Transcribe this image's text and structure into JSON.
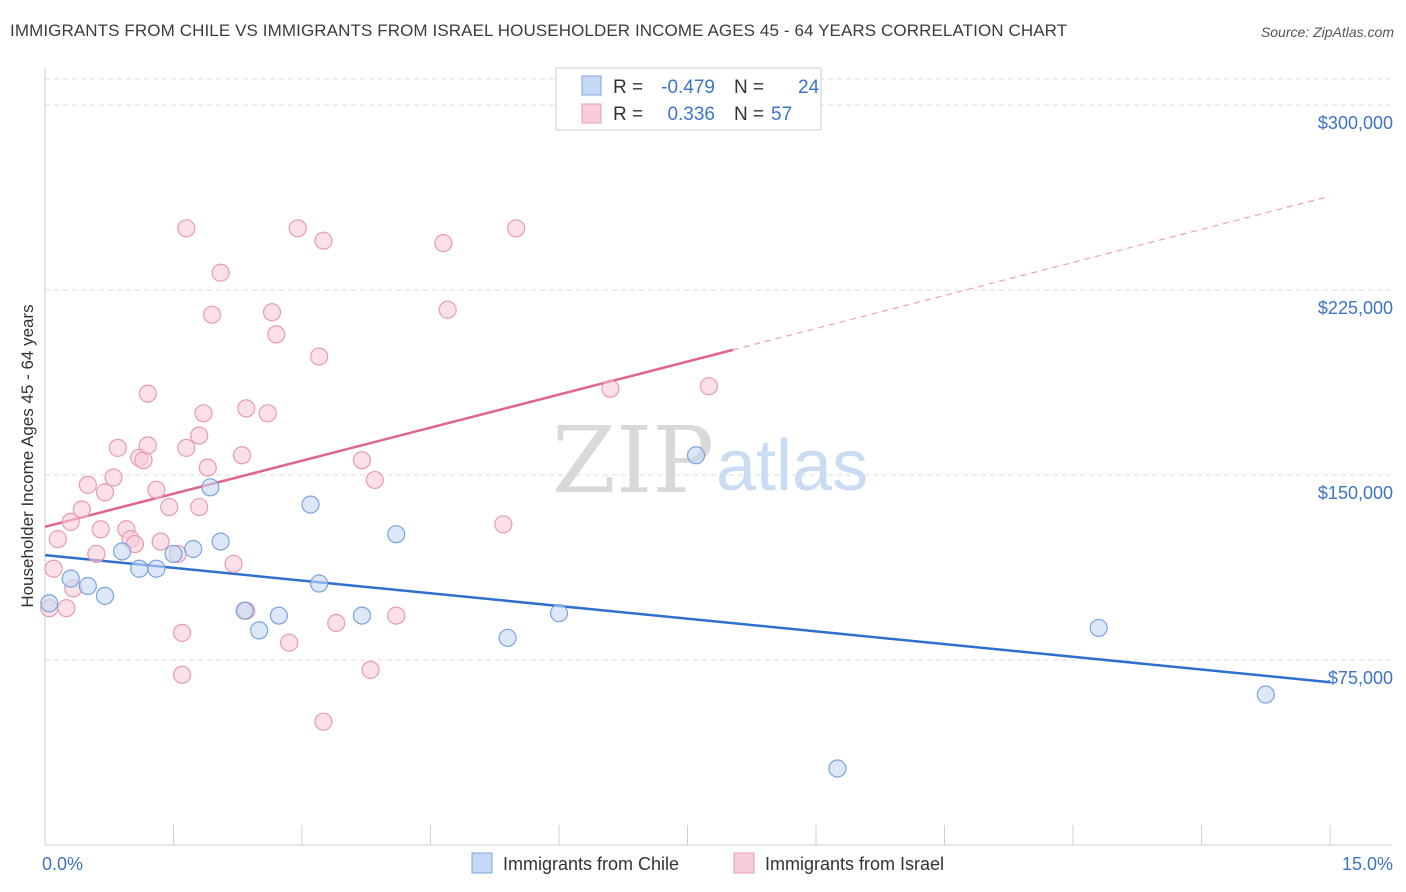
{
  "title": "IMMIGRANTS FROM CHILE VS IMMIGRANTS FROM ISRAEL HOUSEHOLDER INCOME AGES 45 - 64 YEARS CORRELATION CHART",
  "source": "Source: ZipAtlas.com",
  "watermark": {
    "zip": "ZIP",
    "atlas": "atlas"
  },
  "colors": {
    "chile_fill": "#c5d9f4",
    "chile_stroke": "#7aa4dc",
    "chile_line": "#2f6fcf",
    "israel_fill": "#f8ccd9",
    "israel_stroke": "#e79bb3",
    "israel_line": "#e0648b",
    "grid": "#dddddd",
    "axis_text": "#3d74c6"
  },
  "legend_box": [
    {
      "r_label": "R =",
      "r_value": "-0.479",
      "n_label": "N =",
      "n_value": "24"
    },
    {
      "r_label": "R =",
      "r_value": "0.336",
      "n_label": "N =",
      "n_value": "57"
    }
  ],
  "bottom_legend": [
    "Immigrants from Chile",
    "Immigrants from Israel"
  ],
  "chart_data": {
    "type": "scatter",
    "xlabel": "",
    "ylabel": "Householder Income Ages 45 - 64 years",
    "xlim": [
      0,
      15
    ],
    "ylim": [
      0,
      315000
    ],
    "x_tick_labels": [
      {
        "value": 0,
        "label": "0.0%"
      },
      {
        "value": 15,
        "label": "15.0%"
      }
    ],
    "x_minor_ticks": [
      0,
      1.5,
      3,
      4.5,
      6,
      7.5,
      9,
      10.5,
      12,
      13.5,
      15
    ],
    "y_ticks": [
      {
        "value": 75000,
        "label": "$75,000"
      },
      {
        "value": 150000,
        "label": "$150,000"
      },
      {
        "value": 225000,
        "label": "$225,000"
      },
      {
        "value": 300000,
        "label": "$300,000"
      }
    ],
    "grid": true,
    "legend_position": "top-center",
    "series": [
      {
        "name": "Immigrants from Chile",
        "r": -0.479,
        "n": 24,
        "points": [
          [
            0.05,
            98000
          ],
          [
            0.3,
            108000
          ],
          [
            0.5,
            105000
          ],
          [
            0.7,
            101000
          ],
          [
            0.9,
            119000
          ],
          [
            1.1,
            112000
          ],
          [
            1.3,
            112000
          ],
          [
            1.5,
            118000
          ],
          [
            1.73,
            120000
          ],
          [
            1.93,
            145000
          ],
          [
            2.05,
            123000
          ],
          [
            2.33,
            95000
          ],
          [
            2.5,
            87000
          ],
          [
            2.73,
            93000
          ],
          [
            3.1,
            138000
          ],
          [
            3.2,
            106000
          ],
          [
            3.7,
            93000
          ],
          [
            4.1,
            126000
          ],
          [
            5.4,
            84000
          ],
          [
            6.0,
            94000
          ],
          [
            7.6,
            158000
          ],
          [
            9.25,
            31000
          ],
          [
            12.3,
            88000
          ],
          [
            14.25,
            61000
          ]
        ],
        "trend": {
          "x": [
            0,
            15
          ],
          "y": [
            117500,
            66000
          ],
          "solid_until": 15
        }
      },
      {
        "name": "Immigrants from Israel",
        "r": 0.336,
        "n": 57,
        "points": [
          [
            0.05,
            96000
          ],
          [
            0.1,
            112000
          ],
          [
            0.15,
            124000
          ],
          [
            0.3,
            131000
          ],
          [
            0.33,
            104000
          ],
          [
            0.43,
            136000
          ],
          [
            0.5,
            146000
          ],
          [
            0.6,
            118000
          ],
          [
            0.65,
            128000
          ],
          [
            0.7,
            143000
          ],
          [
            0.8,
            149000
          ],
          [
            0.85,
            161000
          ],
          [
            0.95,
            128000
          ],
          [
            1.0,
            124000
          ],
          [
            1.05,
            122000
          ],
          [
            1.1,
            157000
          ],
          [
            1.15,
            156000
          ],
          [
            1.2,
            162000
          ],
          [
            1.2,
            183000
          ],
          [
            1.3,
            144000
          ],
          [
            1.35,
            123000
          ],
          [
            1.45,
            137000
          ],
          [
            1.55,
            118000
          ],
          [
            1.6,
            86000
          ],
          [
            1.6,
            69000
          ],
          [
            1.65,
            161000
          ],
          [
            1.65,
            250000
          ],
          [
            1.8,
            166000
          ],
          [
            1.8,
            137000
          ],
          [
            1.85,
            175000
          ],
          [
            1.9,
            153000
          ],
          [
            1.95,
            215000
          ],
          [
            2.05,
            232000
          ],
          [
            2.2,
            114000
          ],
          [
            2.3,
            158000
          ],
          [
            2.35,
            95000
          ],
          [
            2.35,
            177000
          ],
          [
            2.6,
            175000
          ],
          [
            2.65,
            216000
          ],
          [
            2.7,
            207000
          ],
          [
            2.85,
            82000
          ],
          [
            2.95,
            250000
          ],
          [
            3.2,
            198000
          ],
          [
            3.25,
            50000
          ],
          [
            3.25,
            245000
          ],
          [
            3.4,
            90000
          ],
          [
            3.7,
            156000
          ],
          [
            3.8,
            71000
          ],
          [
            3.85,
            148000
          ],
          [
            4.1,
            93000
          ],
          [
            4.65,
            244000
          ],
          [
            4.7,
            217000
          ],
          [
            5.35,
            130000
          ],
          [
            5.5,
            250000
          ],
          [
            6.6,
            185000
          ],
          [
            7.75,
            186000
          ],
          [
            0.25,
            96000
          ]
        ],
        "trend": {
          "x": [
            0,
            15
          ],
          "y": [
            129000,
            263000
          ],
          "solid_until": 8.03
        }
      }
    ]
  }
}
